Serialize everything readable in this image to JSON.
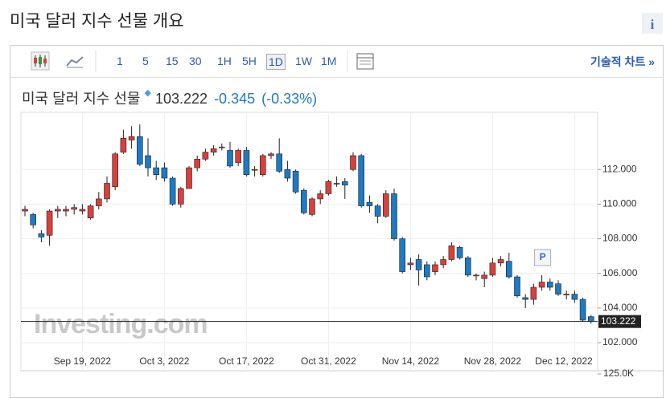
{
  "header": {
    "title": "미국 달러 지수 선물 개요",
    "info": "i"
  },
  "toolbar": {
    "intervals": [
      "1",
      "5",
      "15",
      "30",
      "1H",
      "5H",
      "1D",
      "1W",
      "1M"
    ],
    "active": "1D",
    "tech_chart": "기술적 차트 »"
  },
  "quote": {
    "name": "미국 달러 지수 선물",
    "price": "103.222",
    "change": "-0.345",
    "change_pct": "(-0.33%)"
  },
  "chart_data": {
    "type": "candlestick",
    "watermark": "Investing.com",
    "annotation": "P",
    "categories": [
      null,
      null,
      null,
      null,
      null,
      null,
      null,
      "Sep 19, 2022",
      null,
      null,
      null,
      null,
      null,
      null,
      null,
      null,
      null,
      "Oct 3, 2022",
      null,
      null,
      null,
      null,
      null,
      null,
      null,
      null,
      null,
      "Oct 17, 2022",
      null,
      null,
      null,
      null,
      null,
      null,
      null,
      null,
      null,
      "Oct 31, 2022",
      null,
      null,
      null,
      null,
      null,
      null,
      null,
      null,
      null,
      "Nov 14, 2022",
      null,
      null,
      null,
      null,
      null,
      null,
      null,
      null,
      null,
      "Nov 28, 2022",
      null,
      null,
      null,
      null,
      null,
      null,
      null,
      null,
      null,
      "Dec 12, 2022",
      null,
      null
    ],
    "open": [
      109.6,
      109.4,
      108.3,
      108.2,
      109.6,
      109.6,
      109.7,
      109.6,
      109.2,
      109.9,
      110.3,
      111.0,
      113.0,
      113.7,
      113.9,
      112.8,
      112.1,
      112.1,
      111.5,
      110.0,
      110.9,
      112.1,
      112.6,
      113.0,
      113.3,
      113.1,
      112.4,
      113.1,
      112.0,
      111.7,
      112.8,
      112.9,
      112.0,
      111.9,
      110.8,
      109.4,
      110.3,
      110.6,
      111.2,
      111.3,
      112.0,
      112.8,
      110.1,
      109.9,
      109.3,
      110.6,
      108.0,
      106.5,
      106.8,
      106.5,
      106.1,
      106.5,
      106.8,
      107.5,
      106.9,
      105.9,
      105.7,
      105.9,
      106.6,
      106.7,
      105.8,
      104.6,
      104.5,
      105.2,
      105.5,
      105.4,
      104.8,
      104.8,
      104.5,
      103.5
    ],
    "high": [
      109.9,
      109.5,
      108.5,
      109.7,
      109.9,
      109.9,
      110.0,
      110.0,
      110.0,
      110.7,
      111.6,
      113.0,
      114.3,
      114.5,
      114.6,
      113.8,
      112.5,
      112.4,
      111.6,
      111.0,
      112.2,
      112.8,
      113.2,
      113.4,
      113.5,
      113.6,
      113.2,
      113.3,
      112.2,
      112.9,
      113.0,
      113.8,
      112.5,
      112.0,
      110.9,
      110.4,
      110.8,
      111.4,
      111.6,
      111.5,
      113.0,
      112.9,
      110.5,
      110.0,
      110.8,
      110.9,
      108.1,
      106.9,
      107.1,
      106.7,
      106.7,
      107.0,
      107.8,
      107.6,
      107.0,
      106.0,
      106.1,
      106.9,
      107.0,
      107.2,
      105.9,
      104.8,
      105.4,
      105.9,
      105.7,
      105.6,
      105.0,
      105.0,
      104.6,
      103.6
    ],
    "low": [
      109.3,
      108.6,
      107.8,
      107.6,
      109.2,
      109.3,
      109.4,
      109.4,
      109.1,
      109.7,
      110.1,
      110.8,
      112.9,
      113.2,
      112.2,
      111.6,
      111.4,
      111.3,
      109.9,
      109.8,
      110.9,
      111.9,
      112.5,
      112.8,
      113.1,
      112.1,
      112.2,
      111.6,
      111.6,
      111.6,
      112.6,
      111.8,
      111.3,
      110.6,
      109.4,
      109.3,
      110.0,
      110.5,
      111.0,
      110.3,
      111.9,
      109.8,
      109.5,
      108.9,
      109.2,
      107.9,
      106.0,
      106.2,
      105.3,
      105.6,
      105.9,
      106.3,
      106.7,
      106.8,
      105.8,
      105.6,
      105.2,
      105.8,
      106.4,
      105.7,
      104.6,
      104.0,
      104.2,
      105.0,
      105.0,
      104.7,
      104.5,
      104.3,
      103.2,
      103.1
    ],
    "close": [
      109.7,
      108.8,
      108.1,
      109.6,
      109.7,
      109.7,
      109.8,
      109.7,
      109.9,
      110.3,
      111.2,
      112.9,
      113.8,
      113.9,
      112.3,
      112.1,
      111.7,
      111.5,
      110.0,
      110.9,
      112.1,
      112.6,
      113.0,
      113.2,
      113.3,
      112.2,
      113.1,
      111.7,
      112.0,
      112.8,
      112.9,
      111.9,
      111.5,
      110.7,
      109.5,
      110.3,
      110.6,
      111.3,
      111.2,
      111.1,
      112.8,
      109.9,
      109.9,
      109.3,
      110.6,
      108.0,
      106.1,
      106.6,
      106.2,
      105.8,
      106.5,
      106.8,
      107.6,
      106.9,
      105.9,
      105.9,
      105.9,
      106.6,
      106.8,
      105.8,
      104.7,
      104.5,
      105.2,
      105.5,
      105.2,
      104.8,
      104.8,
      104.5,
      103.3,
      103.222
    ],
    "up_color": "#d8403c",
    "down_color": "#1d7ac3",
    "last_price": 103.222,
    "ylim": [
      101.4,
      115.3
    ],
    "yticks": [
      {
        "value": 102,
        "label": "102.000"
      },
      {
        "value": 104,
        "label": "104.000"
      },
      {
        "value": 106,
        "label": "106.000"
      },
      {
        "value": 108,
        "label": "108.000"
      },
      {
        "value": 110,
        "label": "110.000"
      },
      {
        "value": 112,
        "label": "112.000"
      }
    ],
    "volume_yticks": [
      {
        "value": 125000,
        "label": "125.0K"
      }
    ]
  }
}
